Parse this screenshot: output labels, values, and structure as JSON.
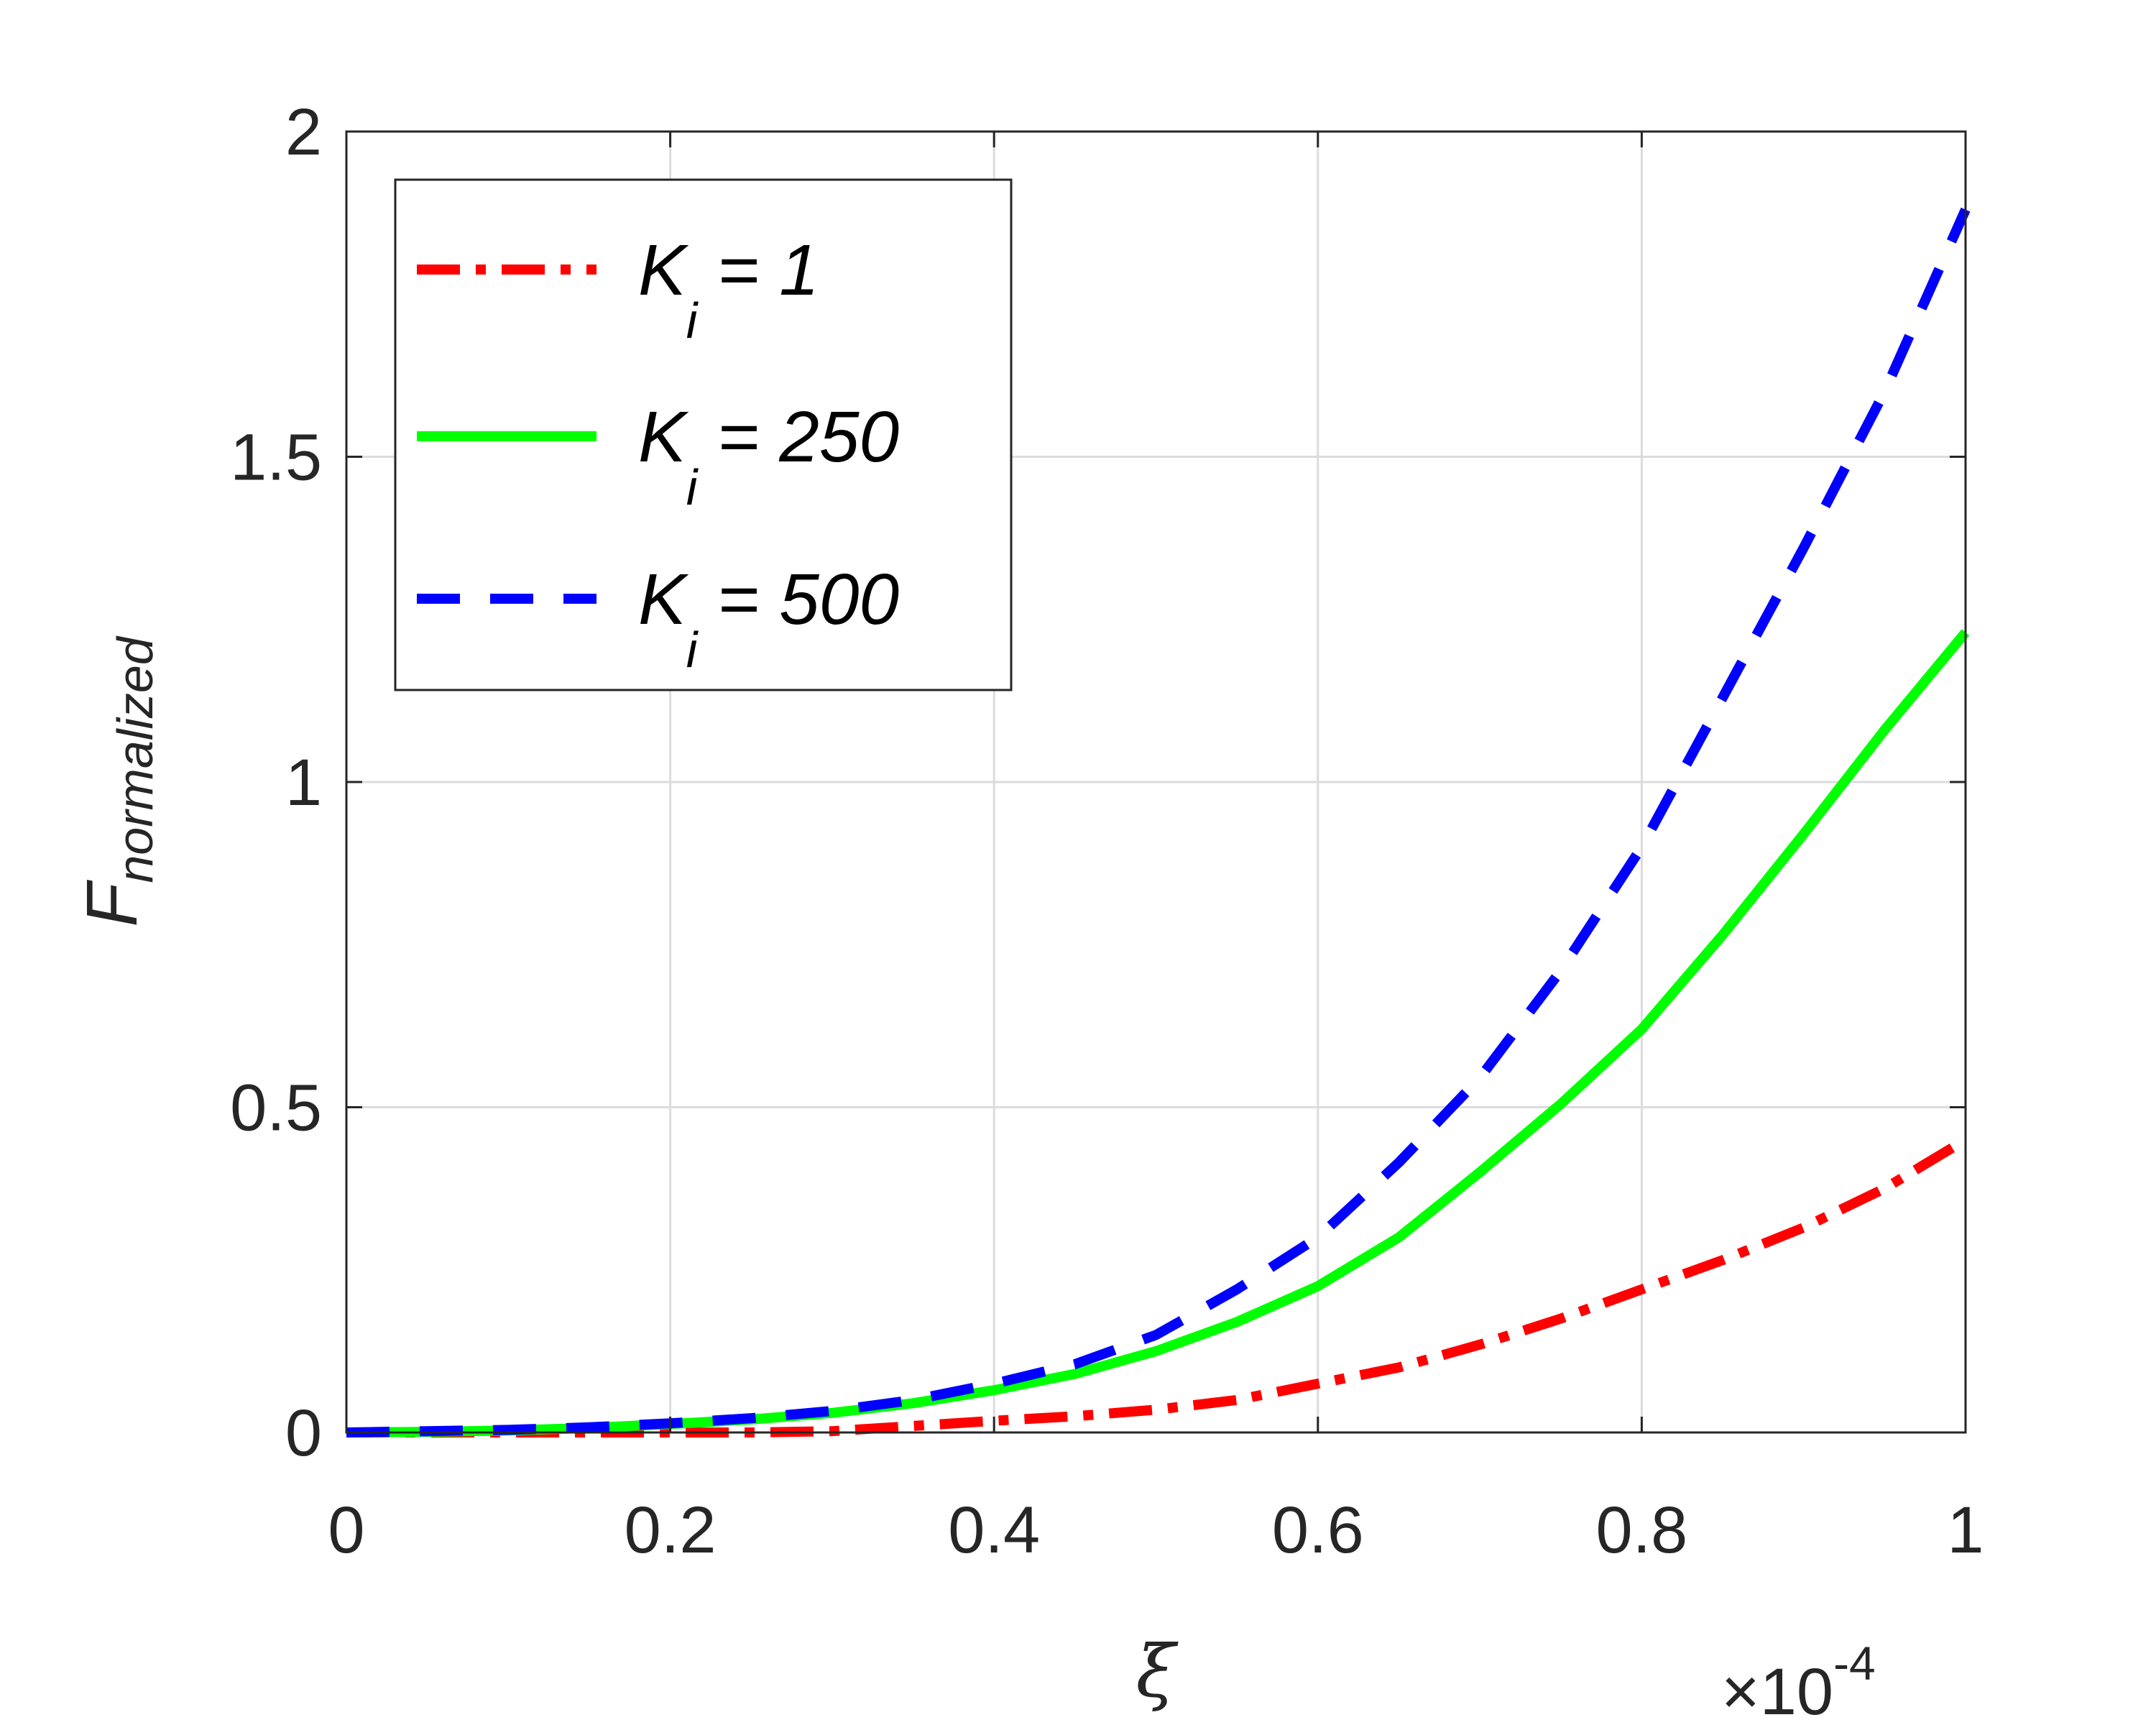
{
  "chart_data": {
    "type": "line",
    "xlabel": "ξ",
    "ylabel": "F",
    "ylabel_subscript": "normalized",
    "x_multiplier": "×10",
    "x_multiplier_exponent": "-4",
    "xlim": [
      0,
      1
    ],
    "ylim": [
      0,
      2
    ],
    "x_ticks": [
      "0",
      "0.2",
      "0.4",
      "0.6",
      "0.8",
      "1"
    ],
    "y_ticks": [
      "0",
      "0.5",
      "1",
      "1.5",
      "2"
    ],
    "grid": true,
    "legend_placement": "top-left",
    "x": [
      0,
      0.05,
      0.1,
      0.15,
      0.2,
      0.25,
      0.3,
      0.35,
      0.4,
      0.45,
      0.5,
      0.55,
      0.6,
      0.65,
      0.7,
      0.75,
      0.8,
      0.85,
      0.9,
      0.95,
      1.0
    ],
    "series": [
      {
        "name": "K",
        "name_subscript": "i",
        "name_suffix": " = 1",
        "color": "#ff0000",
        "style": "dash-dot",
        "values": [
          0,
          0,
          0,
          0,
          0,
          0,
          0.002,
          0.01,
          0.018,
          0.025,
          0.035,
          0.05,
          0.075,
          0.1,
          0.135,
          0.175,
          0.22,
          0.265,
          0.315,
          0.375,
          0.45
        ]
      },
      {
        "name": "K",
        "name_subscript": "i",
        "name_suffix": " = 250",
        "color": "#00ff00",
        "style": "solid",
        "values": [
          0,
          0.001,
          0.003,
          0.007,
          0.013,
          0.02,
          0.03,
          0.045,
          0.065,
          0.09,
          0.125,
          0.17,
          0.225,
          0.3,
          0.4,
          0.505,
          0.62,
          0.765,
          0.92,
          1.08,
          1.23
        ]
      },
      {
        "name": "K",
        "name_subscript": "i",
        "name_suffix": " = 500",
        "color": "#0000ff",
        "style": "dashed",
        "values": [
          0,
          0.002,
          0.004,
          0.008,
          0.014,
          0.022,
          0.033,
          0.05,
          0.075,
          0.105,
          0.15,
          0.22,
          0.3,
          0.415,
          0.545,
          0.71,
          0.9,
          1.13,
          1.36,
          1.6,
          1.88
        ]
      }
    ]
  }
}
